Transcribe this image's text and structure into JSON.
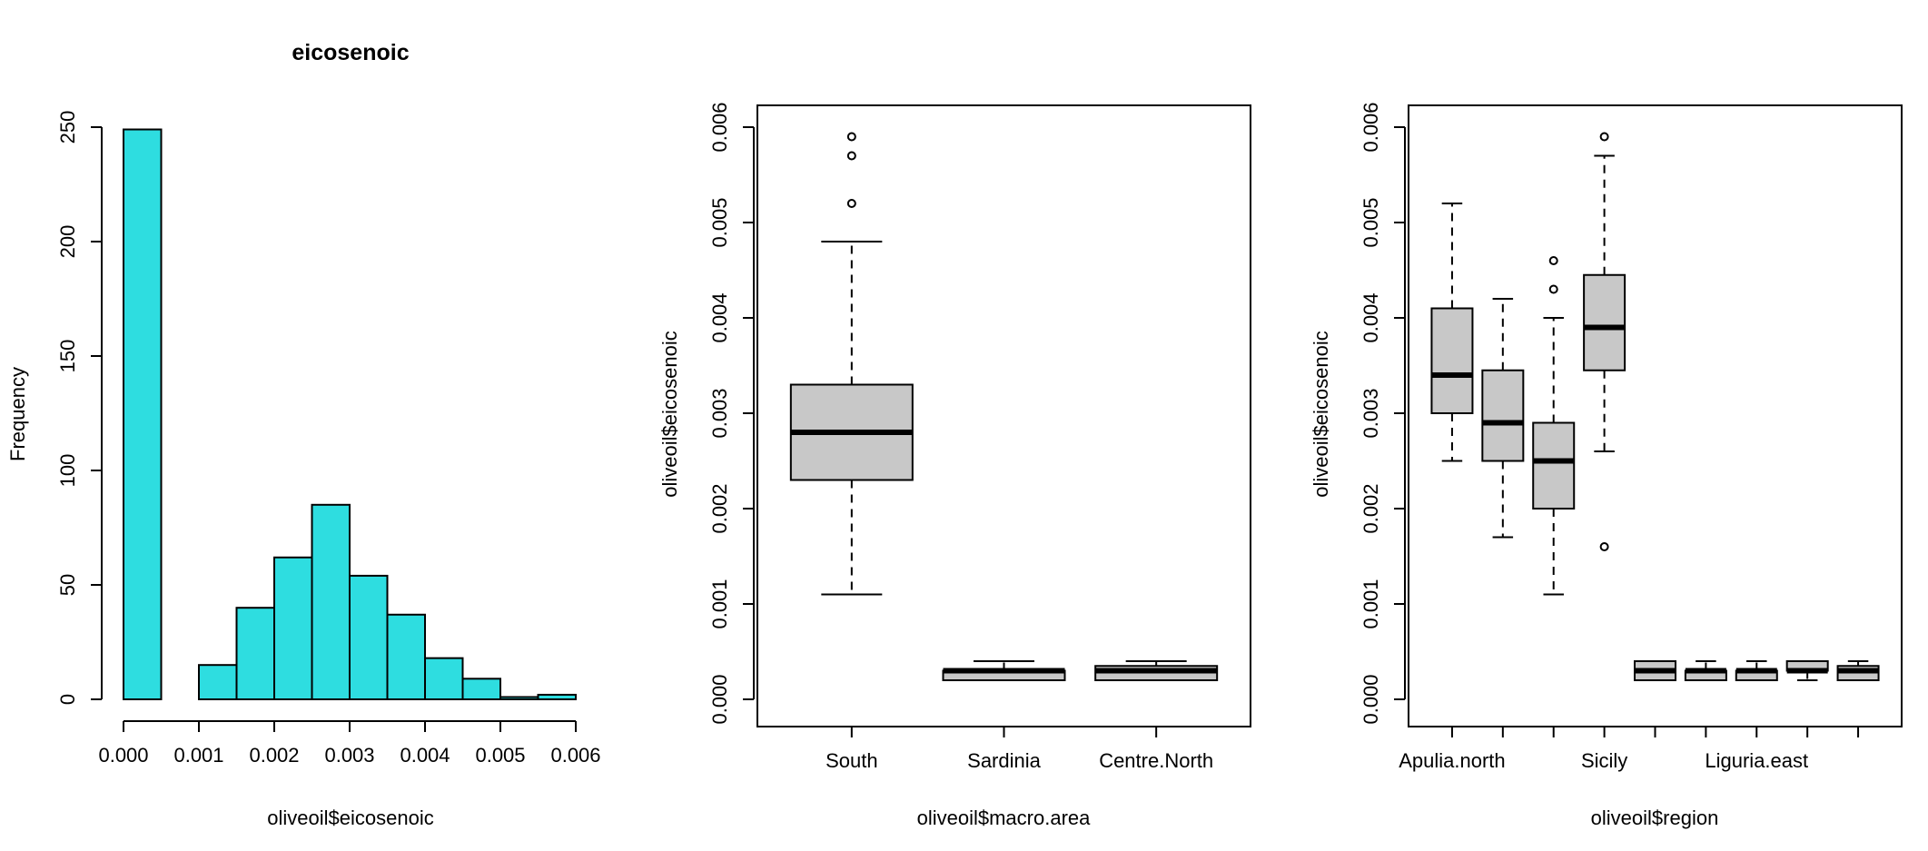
{
  "colors": {
    "hist_fill": "#2edde0",
    "box_fill": "#c8c8c8",
    "stroke": "#000000",
    "background": "#ffffff"
  },
  "chart_data": [
    {
      "type": "bar",
      "subtype": "histogram",
      "title": "eicosenoic",
      "xlabel": "oliveoil$eicosenoic",
      "ylabel": "Frequency",
      "bin_edges": [
        0.0,
        0.0005,
        0.001,
        0.0015,
        0.002,
        0.0025,
        0.003,
        0.0035,
        0.004,
        0.0045,
        0.005,
        0.0055,
        0.006
      ],
      "values": [
        249,
        0,
        15,
        40,
        62,
        85,
        54,
        37,
        18,
        9,
        1,
        2
      ],
      "xticks": [
        "0.000",
        "0.001",
        "0.002",
        "0.003",
        "0.004",
        "0.005",
        "0.006"
      ],
      "xtick_values": [
        0.0,
        0.001,
        0.002,
        0.003,
        0.004,
        0.005,
        0.006
      ],
      "yticks": [
        "0",
        "50",
        "100",
        "150",
        "200",
        "250"
      ],
      "ytick_values": [
        0,
        50,
        100,
        150,
        200,
        250
      ],
      "xlim": [
        0.0,
        0.006
      ],
      "ylim": [
        0,
        250
      ],
      "grid": false,
      "box": false
    },
    {
      "type": "boxplot",
      "title": "",
      "xlabel": "oliveoil$macro.area",
      "ylabel": "oliveoil$eicosenoic",
      "categories": [
        "South",
        "Sardinia",
        "Centre.North"
      ],
      "boxes": [
        {
          "whisker_low": 0.0011,
          "q1": 0.0023,
          "median": 0.0028,
          "q3": 0.0033,
          "whisker_high": 0.0048,
          "outliers": [
            0.0052,
            0.0057,
            0.0059
          ]
        },
        {
          "whisker_low": 0.0002,
          "q1": 0.0002,
          "median": 0.0003,
          "q3": 0.0003,
          "whisker_high": 0.0004,
          "outliers": []
        },
        {
          "whisker_low": 0.0002,
          "q1": 0.0002,
          "median": 0.0003,
          "q3": 0.00035,
          "whisker_high": 0.0004,
          "outliers": []
        }
      ],
      "xtick_labels": [
        "South",
        "Sardinia",
        "Centre.North"
      ],
      "yticks": [
        "0.000",
        "0.001",
        "0.002",
        "0.003",
        "0.004",
        "0.005",
        "0.006"
      ],
      "ytick_values": [
        0.0,
        0.001,
        0.002,
        0.003,
        0.004,
        0.005,
        0.006
      ],
      "ylim": [
        0.0,
        0.006
      ],
      "grid": false,
      "box": true
    },
    {
      "type": "boxplot",
      "title": "",
      "xlabel": "oliveoil$region",
      "ylabel": "oliveoil$eicosenoic",
      "box_count": 9,
      "boxes": [
        {
          "whisker_low": 0.0025,
          "q1": 0.003,
          "median": 0.0034,
          "q3": 0.0041,
          "whisker_high": 0.0052,
          "outliers": []
        },
        {
          "whisker_low": 0.0017,
          "q1": 0.0025,
          "median": 0.0029,
          "q3": 0.00345,
          "whisker_high": 0.0042,
          "outliers": []
        },
        {
          "whisker_low": 0.0011,
          "q1": 0.002,
          "median": 0.0025,
          "q3": 0.0029,
          "whisker_high": 0.004,
          "outliers": [
            0.0043,
            0.0046
          ]
        },
        {
          "whisker_low": 0.0026,
          "q1": 0.00345,
          "median": 0.0039,
          "q3": 0.00445,
          "whisker_high": 0.0057,
          "outliers": [
            0.0016,
            0.0059
          ]
        },
        {
          "whisker_low": 0.0002,
          "q1": 0.0002,
          "median": 0.0003,
          "q3": 0.0004,
          "whisker_high": 0.0004,
          "outliers": []
        },
        {
          "whisker_low": 0.0002,
          "q1": 0.0002,
          "median": 0.0003,
          "q3": 0.0003,
          "whisker_high": 0.0004,
          "outliers": []
        },
        {
          "whisker_low": 0.0002,
          "q1": 0.0002,
          "median": 0.0003,
          "q3": 0.0003,
          "whisker_high": 0.0004,
          "outliers": []
        },
        {
          "whisker_low": 0.0002,
          "q1": 0.0003,
          "median": 0.0003,
          "q3": 0.0004,
          "whisker_high": 0.0004,
          "outliers": []
        },
        {
          "whisker_low": 0.0002,
          "q1": 0.0002,
          "median": 0.0003,
          "q3": 0.00035,
          "whisker_high": 0.0004,
          "outliers": []
        }
      ],
      "xtick_labels": [
        {
          "index": 0,
          "label": "Apulia.north"
        },
        {
          "index": 3,
          "label": "Sicily"
        },
        {
          "index": 6,
          "label": "Liguria.east"
        }
      ],
      "yticks": [
        "0.000",
        "0.001",
        "0.002",
        "0.003",
        "0.004",
        "0.005",
        "0.006"
      ],
      "ytick_values": [
        0.0,
        0.001,
        0.002,
        0.003,
        0.004,
        0.005,
        0.006
      ],
      "ylim": [
        0.0,
        0.006
      ],
      "grid": false,
      "box": true
    }
  ]
}
